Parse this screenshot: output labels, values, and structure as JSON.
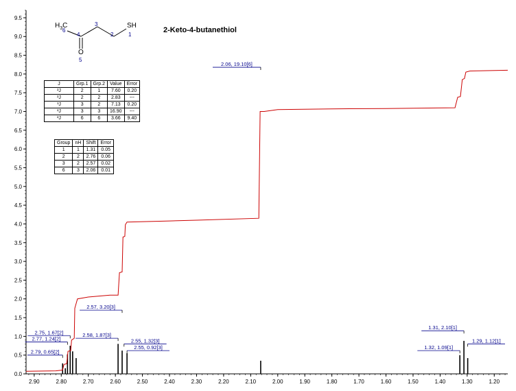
{
  "title": "2-Keto-4-butanethiol",
  "molecule": {
    "atoms": [
      "H3C",
      "6",
      "4",
      "3",
      "2",
      "SH",
      "1",
      "O",
      "5"
    ]
  },
  "j_table": {
    "headers": [
      "J",
      "Grp.1",
      "Grp.2",
      "Value",
      "Error"
    ],
    "rows": [
      [
        "²J",
        "2",
        "1",
        "7.60",
        "0.20"
      ],
      [
        "²J",
        "2",
        "2",
        "2.83",
        "---"
      ],
      [
        "³J",
        "3",
        "2",
        "7.13",
        "0.20"
      ],
      [
        "²J",
        "3",
        "3",
        "16.90",
        "---"
      ],
      [
        "²J",
        "6",
        "6",
        "3.66",
        "9.40"
      ]
    ]
  },
  "group_table": {
    "headers": [
      "Group",
      "nH",
      "Shift",
      "Error"
    ],
    "rows": [
      [
        "1",
        "1",
        "1.31",
        "0.05"
      ],
      [
        "2",
        "2",
        "2.76",
        "0.06"
      ],
      [
        "3",
        "2",
        "2.57",
        "0.02"
      ],
      [
        "6",
        "3",
        "2.06",
        "0.01"
      ]
    ]
  },
  "chart_data": {
    "type": "line",
    "x_reversed": true,
    "xlim": [
      2.93,
      1.15
    ],
    "ylim": [
      0,
      9.7
    ],
    "x_ticks": [
      "2.90",
      "2.80",
      "2.70",
      "2.60",
      "2.50",
      "2.40",
      "2.30",
      "2.20",
      "2.10",
      "2.00",
      "1.90",
      "1.80",
      "1.70",
      "1.60",
      "1.50",
      "1.40",
      "1.30",
      "1.20"
    ],
    "y_ticks": [
      "0.0",
      "0.5",
      "1.0",
      "1.5",
      "2.0",
      "2.5",
      "3.0",
      "3.5",
      "4.0",
      "4.5",
      "5.0",
      "5.5",
      "6.0",
      "6.5",
      "7.0",
      "7.5",
      "8.0",
      "8.5",
      "9.0",
      "9.5"
    ],
    "colors": {
      "integral": "#cc0000",
      "peaks": "#000000",
      "labels": "#00008b",
      "axes": "#000000"
    },
    "integral_curve": [
      [
        2.93,
        0.07
      ],
      [
        2.82,
        0.08
      ],
      [
        2.795,
        0.1
      ],
      [
        2.79,
        0.25
      ],
      [
        2.78,
        0.27
      ],
      [
        2.775,
        0.6
      ],
      [
        2.765,
        0.62
      ],
      [
        2.762,
        0.9
      ],
      [
        2.752,
        0.95
      ],
      [
        2.75,
        1.75
      ],
      [
        2.74,
        2.0
      ],
      [
        2.7,
        2.05
      ],
      [
        2.62,
        2.1
      ],
      [
        2.59,
        2.1
      ],
      [
        2.585,
        2.7
      ],
      [
        2.575,
        2.72
      ],
      [
        2.572,
        3.65
      ],
      [
        2.565,
        3.67
      ],
      [
        2.563,
        3.98
      ],
      [
        2.557,
        4.05
      ],
      [
        2.4,
        4.08
      ],
      [
        2.3,
        4.1
      ],
      [
        2.07,
        4.15
      ],
      [
        2.065,
        7.0
      ],
      [
        2.05,
        7.0
      ],
      [
        2.0,
        7.05
      ],
      [
        1.8,
        7.07
      ],
      [
        1.6,
        7.08
      ],
      [
        1.345,
        7.1
      ],
      [
        1.335,
        7.38
      ],
      [
        1.325,
        7.4
      ],
      [
        1.318,
        7.85
      ],
      [
        1.31,
        7.88
      ],
      [
        1.305,
        8.05
      ],
      [
        1.29,
        8.08
      ],
      [
        1.15,
        8.1
      ]
    ],
    "peaks": [
      {
        "x": 2.795,
        "h": 0.28
      },
      {
        "x": 2.785,
        "h": 0.15
      },
      {
        "x": 2.777,
        "h": 0.52
      },
      {
        "x": 2.767,
        "h": 0.75
      },
      {
        "x": 2.758,
        "h": 0.6
      },
      {
        "x": 2.745,
        "h": 0.42
      },
      {
        "x": 2.59,
        "h": 0.8
      },
      {
        "x": 2.575,
        "h": 0.62
      },
      {
        "x": 2.557,
        "h": 0.55
      },
      {
        "x": 2.063,
        "h": 0.35
      },
      {
        "x": 1.327,
        "h": 0.5
      },
      {
        "x": 1.312,
        "h": 0.88
      },
      {
        "x": 1.298,
        "h": 0.42
      }
    ],
    "annotations": [
      {
        "text": "2.79, 0.65[2]",
        "x": 2.795,
        "label_y": 0.5
      },
      {
        "text": "2.77, 1.24[2]",
        "x": 2.777,
        "label_y": 0.85
      },
      {
        "text": "2.75, 1.67[2]",
        "x": 2.767,
        "label_y": 1.02
      },
      {
        "text": "2.58, 1.87[3]",
        "x": 2.59,
        "label_y": 0.95
      },
      {
        "text": "2.57, 3.20[3]",
        "x": 2.575,
        "label_y": 1.7
      },
      {
        "text": "2.55, 1.32[3]",
        "x": 2.568,
        "label_y": 0.8
      },
      {
        "text": "2.55, 0.92[3]",
        "x": 2.557,
        "label_y": 0.62
      },
      {
        "text": "2.06, 19.10[6]",
        "x": 2.063,
        "label_y": 8.18
      },
      {
        "text": "1.31, 2.10[1]",
        "x": 1.312,
        "label_y": 1.15
      },
      {
        "text": "1.32, 1.09[1]",
        "x": 1.327,
        "label_y": 0.62
      },
      {
        "text": "1.29, 1.12[1]",
        "x": 1.298,
        "label_y": 0.8
      }
    ]
  }
}
